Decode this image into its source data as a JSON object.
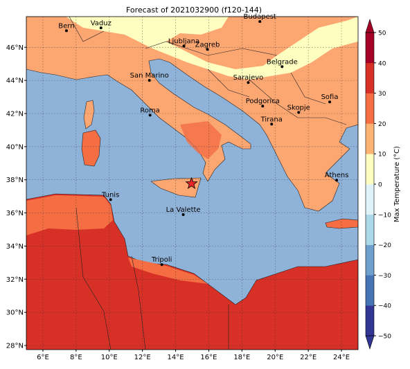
{
  "title": "Forecast of 2021032900 (f120-144)",
  "map": {
    "lonlim": [
      5,
      25
    ],
    "latlim": [
      27.75,
      47.85
    ],
    "lonticks": [
      {
        "value": 6,
        "label": "6°E"
      },
      {
        "value": 8,
        "label": "8°E"
      },
      {
        "value": 10,
        "label": "10°E"
      },
      {
        "value": 12,
        "label": "12°E"
      },
      {
        "value": 14,
        "label": "14°E"
      },
      {
        "value": 16,
        "label": "16°E"
      },
      {
        "value": 18,
        "label": "18°E"
      },
      {
        "value": 20,
        "label": "20°E"
      },
      {
        "value": 22,
        "label": "22°E"
      },
      {
        "value": 24,
        "label": "24°E"
      }
    ],
    "latticks": [
      {
        "value": 28,
        "label": "28°N"
      },
      {
        "value": 30,
        "label": "30°N"
      },
      {
        "value": 32,
        "label": "32°N"
      },
      {
        "value": 34,
        "label": "34°N"
      },
      {
        "value": 36,
        "label": "36°N"
      },
      {
        "value": 38,
        "label": "38°N"
      },
      {
        "value": 40,
        "label": "40°N"
      },
      {
        "value": 42,
        "label": "42°N"
      },
      {
        "value": 44,
        "label": "44°N"
      },
      {
        "value": 46,
        "label": "46°N"
      }
    ],
    "cities": [
      {
        "name": "Bern",
        "lon": 7.42,
        "lat": 47.0
      },
      {
        "name": "Vaduz",
        "lon": 9.5,
        "lat": 47.17
      },
      {
        "name": "Budapest",
        "lon": 19.08,
        "lat": 47.55
      },
      {
        "name": "Ljubljana",
        "lon": 14.5,
        "lat": 46.08
      },
      {
        "name": "Zagreb",
        "lon": 15.92,
        "lat": 45.87
      },
      {
        "name": "Belgrade",
        "lon": 20.42,
        "lat": 44.83
      },
      {
        "name": "San Marino",
        "lon": 12.42,
        "lat": 44.0
      },
      {
        "name": "Sarajevo",
        "lon": 18.38,
        "lat": 43.87
      },
      {
        "name": "Sofia",
        "lon": 23.29,
        "lat": 42.7
      },
      {
        "name": "Roma",
        "lon": 12.46,
        "lat": 41.9
      },
      {
        "name": "Podgorica",
        "lon": 19.25,
        "lat": 42.45
      },
      {
        "name": "Skopje",
        "lon": 21.42,
        "lat": 42.07
      },
      {
        "name": "Tirana",
        "lon": 19.79,
        "lat": 41.36
      },
      {
        "name": "Athens",
        "lon": 23.71,
        "lat": 37.98
      },
      {
        "name": "Tunis",
        "lon": 10.08,
        "lat": 36.8
      },
      {
        "name": "La Valette",
        "lon": 14.46,
        "lat": 35.9
      },
      {
        "name": "Tripoli",
        "lon": 13.17,
        "lat": 32.88
      }
    ],
    "star": {
      "lon": 14.96,
      "lat": 37.77
    }
  },
  "colorbar": {
    "label": "Max Temperature (°C)",
    "clim": [
      -50,
      50
    ],
    "ticks": [
      {
        "value": -50,
        "label": "−50"
      },
      {
        "value": -40,
        "label": "−40"
      },
      {
        "value": -30,
        "label": "−30"
      },
      {
        "value": -20,
        "label": "−20"
      },
      {
        "value": -10,
        "label": "−10"
      },
      0,
      10,
      20,
      30,
      40,
      50
    ],
    "colors": [
      "#313695",
      "#4575b4",
      "#6f9fcc",
      "#abd9e9",
      "#e0f3f8",
      "#fefec0",
      "#fdb374",
      "#f46d43",
      "#d73027",
      "#a50026"
    ]
  }
}
